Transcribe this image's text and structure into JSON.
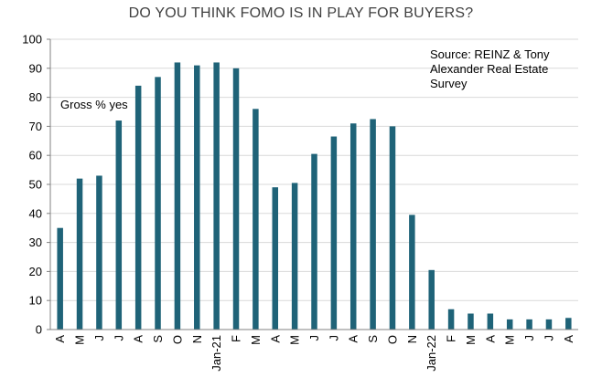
{
  "chart_data": {
    "type": "bar",
    "title": "DO YOU THINK FOMO IS IN PLAY FOR BUYERS?",
    "source_lines": [
      "Source: REINZ & Tony",
      "Alexander  Real Estate",
      "Survey"
    ],
    "series_label": "Gross % yes",
    "categories": [
      "A",
      "M",
      "J",
      "J",
      "A",
      "S",
      "O",
      "N",
      "Jan-21",
      "F",
      "M",
      "A",
      "M",
      "J",
      "J",
      "A",
      "S",
      "O",
      "N",
      "Jan-22",
      "F",
      "M",
      "A",
      "M",
      "J",
      "J",
      "A"
    ],
    "series": [
      {
        "name": "Gross % yes",
        "values": [
          35,
          52,
          53,
          72,
          84,
          87,
          92,
          91,
          92,
          90,
          76,
          49,
          50.5,
          60.5,
          66.5,
          71,
          72.5,
          70,
          39.5,
          20.5,
          7,
          5.5,
          5.5,
          3.5,
          3.5,
          3.5,
          4
        ]
      }
    ],
    "ylim": [
      0,
      100
    ],
    "yticks": [
      0,
      10,
      20,
      30,
      40,
      50,
      60,
      70,
      80,
      90,
      100
    ],
    "xlabel": "",
    "ylabel": "",
    "grid": true,
    "bar_color": "#1f6378",
    "grid_color": "#d9d9d9",
    "axis_color": "#808080"
  }
}
